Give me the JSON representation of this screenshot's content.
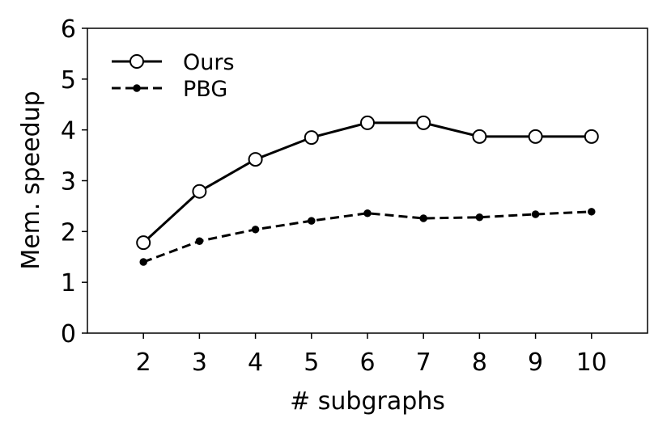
{
  "chart_data": {
    "type": "line",
    "x_label": "# subgraphs",
    "y_label": "Mem. speedup",
    "x": [
      2,
      3,
      4,
      5,
      6,
      7,
      8,
      9,
      10
    ],
    "series": [
      {
        "name": "Ours",
        "color": "#000000",
        "linestyle": "solid",
        "marker": "open-circle",
        "values": [
          1.78,
          2.79,
          3.42,
          3.85,
          4.14,
          4.14,
          3.87,
          3.87,
          3.87
        ]
      },
      {
        "name": "PBG",
        "color": "#000000",
        "linestyle": "dashed",
        "marker": "small-dot",
        "values": [
          1.4,
          1.81,
          2.04,
          2.21,
          2.36,
          2.26,
          2.28,
          2.34,
          2.39
        ]
      }
    ],
    "xlim": [
      1,
      11
    ],
    "ylim": [
      0,
      6
    ],
    "xticks": [
      2,
      3,
      4,
      5,
      6,
      7,
      8,
      9,
      10
    ],
    "yticks": [
      0,
      1,
      2,
      3,
      4,
      5,
      6
    ],
    "grid": false,
    "legend": "upper left"
  }
}
